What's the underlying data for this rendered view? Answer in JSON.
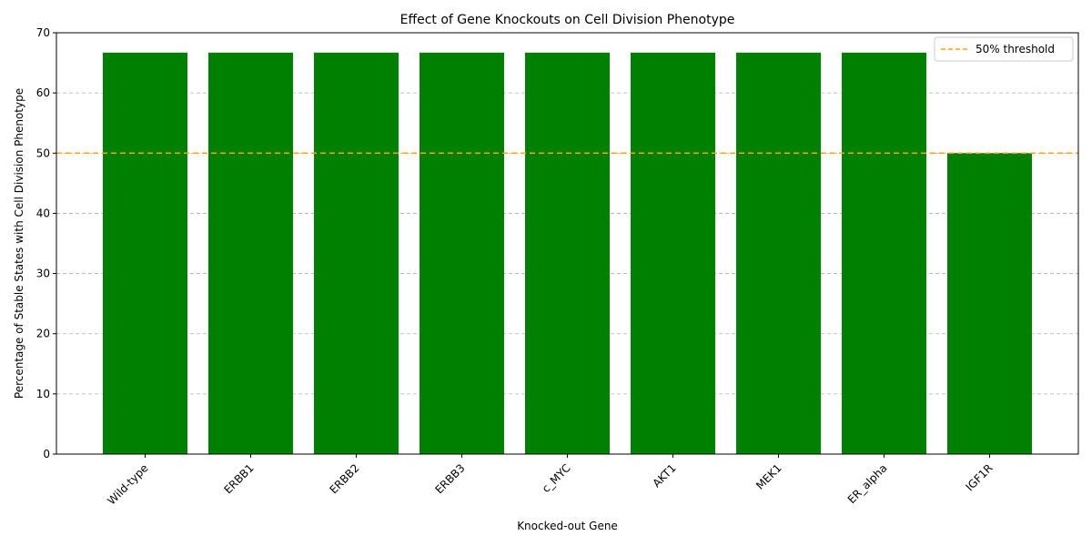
{
  "chart_data": {
    "type": "bar",
    "title": "Effect of Gene Knockouts on Cell Division Phenotype",
    "xlabel": "Knocked-out Gene",
    "ylabel": "Percentage of Stable States with Cell Division Phenotype",
    "categories": [
      "Wild-type",
      "ERBB1",
      "ERBB2",
      "ERBB3",
      "c_MYC",
      "AKT1",
      "MEK1",
      "ER_alpha",
      "IGF1R"
    ],
    "values": [
      66.7,
      66.7,
      66.7,
      66.7,
      66.7,
      66.7,
      66.7,
      66.7,
      50.0
    ],
    "ylim": [
      0,
      70
    ],
    "yticks": [
      0,
      10,
      20,
      30,
      40,
      50,
      60,
      70
    ],
    "bar_color": "#008000",
    "grid": "y-dashed",
    "threshold": {
      "value": 50,
      "label": "50% threshold",
      "color": "#FFA500"
    },
    "legend_position": "top-right"
  }
}
